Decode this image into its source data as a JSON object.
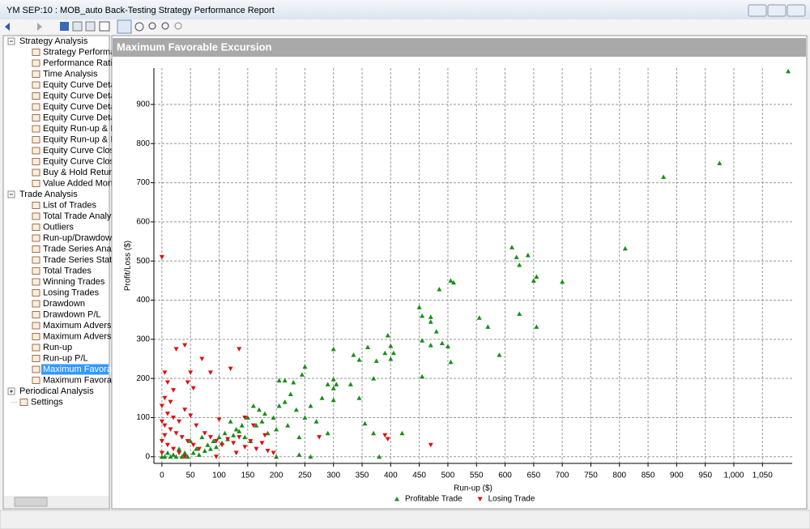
{
  "window": {
    "title": "YM  SEP:10 : MOB_auto Back-Testing Strategy Performance Report"
  },
  "tree": [
    {
      "label": "Strategy Analysis",
      "expanded": true,
      "children": [
        "Strategy Performanc",
        "Performance Ratios",
        "Time Analysis",
        "Equity Curve Detaile",
        "Equity Curve Detaile",
        "Equity Curve Detaile",
        "Equity Curve Detaile",
        "Equity Run-up & Dra",
        "Equity Run-up & Dra",
        "Equity Curve Close T",
        "Equity Curve Close T",
        "Buy & Hold Return",
        "Value Added Month"
      ]
    },
    {
      "label": "Trade Analysis",
      "expanded": true,
      "children": [
        "List of Trades",
        "Total Trade Analysis",
        "Outliers",
        "Run-up/Drawdown",
        "Trade Series Analysis",
        "Trade Series Statistic",
        "Total Trades",
        "Winning Trades",
        "Losing Trades",
        "Drawdown",
        "Drawdown P/L",
        "Maximum Adverse E",
        "Maximum Adverse E",
        "Run-up",
        "Run-up P/L",
        "Maximum Favorable",
        "Maximum Favorable"
      ],
      "selected": 15
    },
    {
      "label": "Periodical Analysis",
      "expanded": false,
      "children": []
    },
    {
      "label": "Settings",
      "expanded": false,
      "children": []
    }
  ],
  "panel": {
    "title": "Maximum Favorable Excursion"
  },
  "chart_data": {
    "type": "scatter",
    "xlabel": "Run-up ($)",
    "ylabel": "Profit/Loss ($)",
    "xlim": [
      -14,
      1102
    ],
    "ylim": [
      -17,
      993
    ],
    "xticks": [
      0,
      50,
      100,
      150,
      200,
      250,
      300,
      350,
      400,
      450,
      500,
      550,
      600,
      650,
      700,
      750,
      800,
      850,
      900,
      950,
      {
        "value": 1000,
        "label": "1,000"
      },
      {
        "value": 1050,
        "label": "1,050"
      }
    ],
    "yticks": [
      0,
      100,
      200,
      300,
      400,
      500,
      600,
      700,
      800,
      900
    ],
    "grid": true,
    "legend": "bottom",
    "series": [
      {
        "name": "Profitable Trade",
        "color": "#1a8c1a",
        "marker": "triangle-up",
        "x": [
          1095,
          975,
          877,
          810,
          612,
          620,
          625,
          640,
          650,
          655,
          655,
          625,
          700,
          590,
          570,
          555,
          505,
          510,
          485,
          500,
          505,
          470,
          470,
          480,
          450,
          455,
          455,
          455,
          470,
          490,
          395,
          400,
          405,
          390,
          400,
          375,
          370,
          360,
          345,
          335,
          330,
          345,
          355,
          370,
          420,
          300,
          300,
          305,
          300,
          300,
          290,
          280,
          260,
          250,
          245,
          230,
          215,
          205,
          250,
          270,
          290,
          240,
          220,
          200,
          180,
          170,
          160,
          150,
          140,
          130,
          120,
          110,
          100,
          90,
          80,
          70,
          60,
          50,
          40,
          30,
          20,
          10,
          5,
          0,
          15,
          25,
          35,
          45,
          55,
          65,
          75,
          85,
          95,
          105,
          115,
          125,
          135,
          145,
          155,
          165,
          175,
          185,
          195,
          205,
          215,
          225,
          235,
          240,
          260,
          200,
          380
        ],
        "values": [
          985,
          750,
          715,
          532,
          535,
          510,
          490,
          515,
          450,
          460,
          332,
          365,
          447,
          260,
          332,
          355,
          450,
          445,
          428,
          282,
          242,
          357,
          345,
          320,
          382,
          360,
          297,
          205,
          285,
          290,
          310,
          283,
          265,
          265,
          250,
          245,
          200,
          280,
          248,
          260,
          185,
          150,
          85,
          60,
          60,
          275,
          198,
          185,
          175,
          145,
          185,
          150,
          130,
          230,
          210,
          190,
          195,
          195,
          100,
          90,
          60,
          50,
          80,
          70,
          110,
          120,
          130,
          100,
          80,
          70,
          90,
          60,
          50,
          40,
          30,
          50,
          20,
          40,
          10,
          20,
          5,
          10,
          0,
          0,
          0,
          0,
          0,
          0,
          10,
          5,
          15,
          20,
          25,
          35,
          45,
          55,
          65,
          50,
          40,
          80,
          90,
          60,
          100,
          130,
          140,
          160,
          120,
          5,
          0,
          0,
          0
        ]
      },
      {
        "name": "Losing Trade",
        "color": "#e01010",
        "marker": "triangle-down",
        "x": [
          0,
          5,
          40,
          70,
          25,
          135,
          120,
          85,
          50,
          10,
          20,
          45,
          55,
          5,
          15,
          0,
          10,
          20,
          0,
          5,
          15,
          25,
          35,
          45,
          55,
          65,
          75,
          85,
          95,
          105,
          115,
          125,
          135,
          145,
          155,
          165,
          175,
          180,
          185,
          195,
          160,
          145,
          100,
          60,
          30,
          40,
          50,
          0,
          10,
          20,
          30,
          40,
          0,
          5,
          395,
          390,
          470,
          275,
          95,
          130
        ],
        "values": [
          510,
          215,
          285,
          250,
          275,
          275,
          225,
          215,
          215,
          190,
          170,
          190,
          175,
          150,
          140,
          130,
          110,
          100,
          90,
          80,
          70,
          60,
          50,
          40,
          30,
          20,
          60,
          50,
          40,
          30,
          45,
          35,
          50,
          25,
          40,
          20,
          35,
          55,
          15,
          10,
          80,
          100,
          95,
          80,
          90,
          120,
          105,
          40,
          30,
          20,
          10,
          0,
          10,
          55,
          45,
          55,
          30,
          50,
          0,
          10
        ]
      }
    ]
  }
}
